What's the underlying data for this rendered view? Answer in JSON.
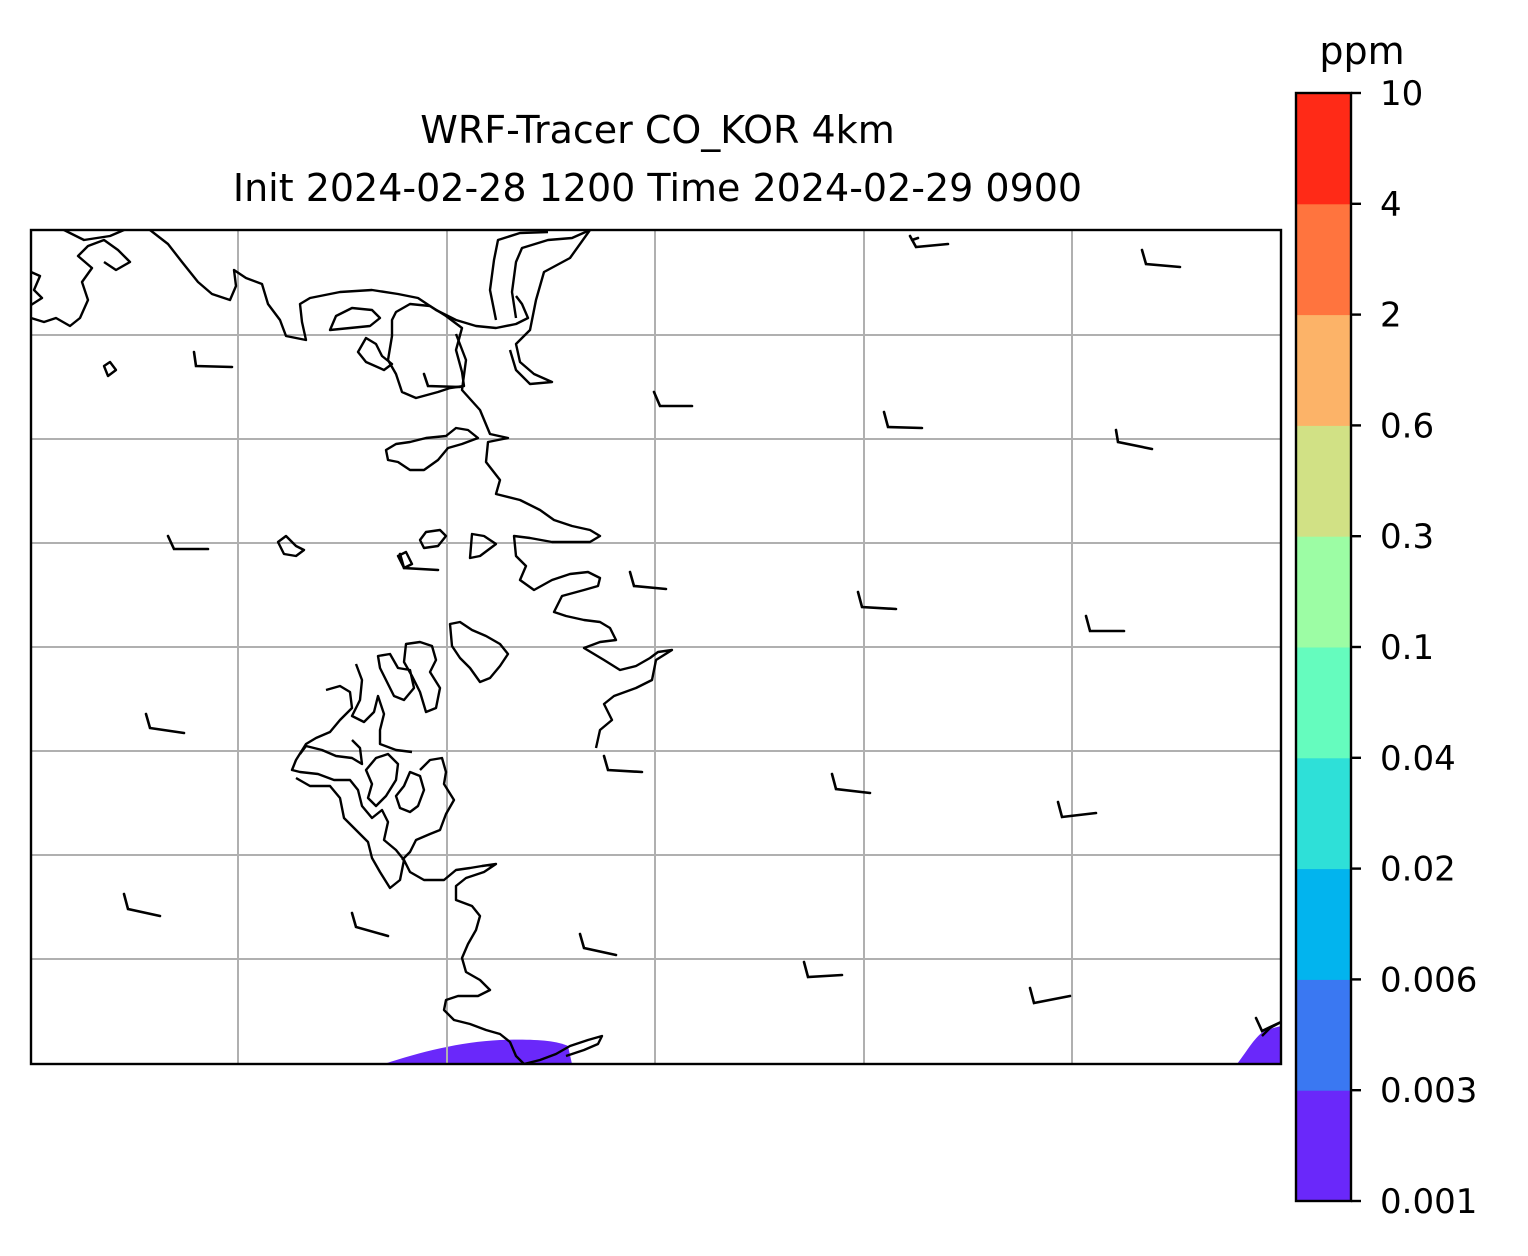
{
  "figure": {
    "title_line1": "WRF-Tracer CO_KOR 4km",
    "title_line2": "Init 2024-02-28 1200 Time 2024-02-29 0900"
  },
  "colorbar": {
    "unit": "ppm",
    "levels": [
      "0.001",
      "0.003",
      "0.006",
      "0.02",
      "0.04",
      "0.1",
      "0.3",
      "0.6",
      "2",
      "4",
      "10"
    ],
    "colors": [
      "#6a28fa",
      "#3a78f2",
      "#02b4ee",
      "#2ee0d8",
      "#65fcbe",
      "#9cfda4",
      "#d1e185",
      "#fcb368",
      "#ff743e",
      "#ff2a17"
    ]
  },
  "map": {
    "tracer": "CO_KOR",
    "gridlines": true,
    "coastline_color": "#000000",
    "gridline_color": "#b0b0b0",
    "shaded_levels_visible": [
      "0.001"
    ]
  }
}
